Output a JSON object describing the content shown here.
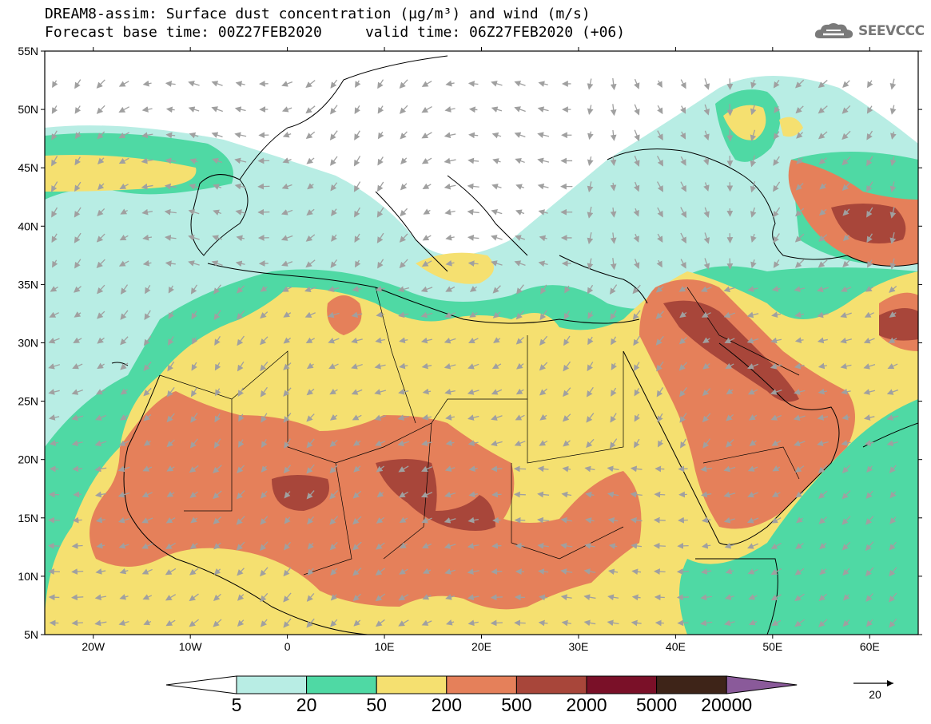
{
  "title": {
    "line1": "DREAM8-assim: Surface dust concentration (µg/m³) and wind (m/s)",
    "line2": "Forecast base time: 00Z27FEB2020     valid time: 06Z27FEB2020 (+06)"
  },
  "brand": {
    "name": "SEEVCCC",
    "icon": "cloud-logo-icon"
  },
  "map": {
    "lon_range": [
      -25,
      65
    ],
    "lat_range": [
      5,
      55
    ],
    "lat_labels": [
      "5N",
      "10N",
      "15N",
      "20N",
      "25N",
      "30N",
      "35N",
      "40N",
      "45N",
      "50N",
      "55N"
    ],
    "lon_labels": [
      "20W",
      "10W",
      "0",
      "10E",
      "20E",
      "30E",
      "40E",
      "50E",
      "60E"
    ],
    "lon_values": [
      -20,
      -10,
      0,
      10,
      20,
      30,
      40,
      50,
      60
    ],
    "background_color": "#ffffff",
    "wind_arrow_color": "#a0a0a0",
    "coastline_color": "#000000"
  },
  "colorbar": {
    "labels": [
      "5",
      "20",
      "50",
      "200",
      "500",
      "2000",
      "5000",
      "20000"
    ],
    "colors": [
      "#b8ede4",
      "#4fd9a4",
      "#f5e070",
      "#e5805a",
      "#a8463a",
      "#7a1028",
      "#3e2418",
      "#8a5a9a"
    ],
    "low_color": "#ffffff",
    "high_color": "#8a5a9a"
  },
  "wind_legend": {
    "value": "20"
  }
}
